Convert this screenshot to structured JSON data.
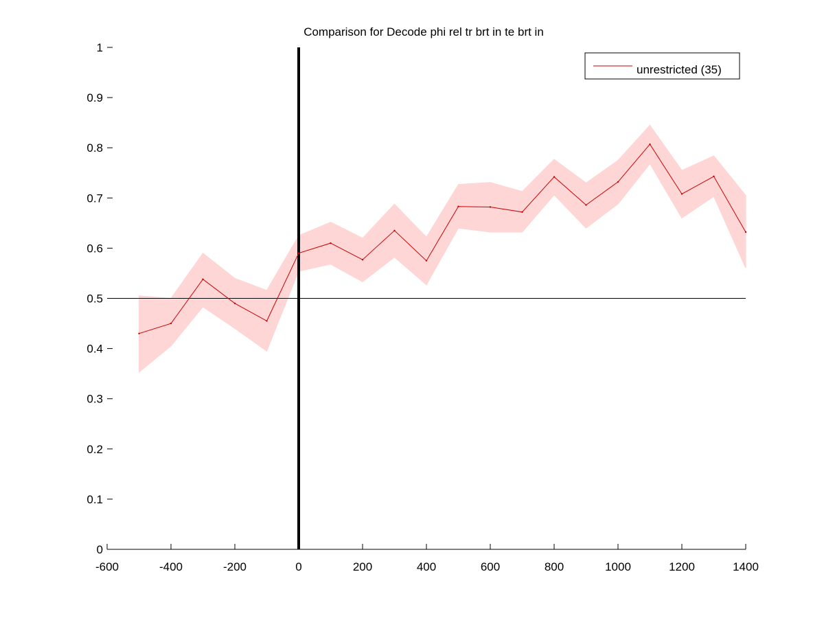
{
  "chart_data": {
    "type": "line",
    "title": "Comparison for Decode phi rel tr brt in te brt in",
    "xlabel": "",
    "ylabel": "",
    "xlim": [
      -600,
      1400
    ],
    "ylim": [
      0,
      1
    ],
    "xticks": [
      -600,
      -400,
      -200,
      0,
      200,
      400,
      600,
      800,
      1000,
      1200,
      1400
    ],
    "xtick_labels": [
      "-600",
      "-400",
      "-200",
      "0",
      "200",
      "400",
      "600",
      "800",
      "1000",
      "1200",
      "1400"
    ],
    "yticks": [
      0,
      0.1,
      0.2,
      0.3,
      0.4,
      0.5,
      0.6,
      0.7,
      0.8,
      0.9,
      1
    ],
    "ytick_labels": [
      "0",
      "0.1",
      "0.2",
      "0.3",
      "0.4",
      "0.5",
      "0.6",
      "0.7",
      "0.8",
      "0.9",
      "1"
    ],
    "grid": false,
    "legend_position": "top-right",
    "reference_lines": {
      "horizontal_y": 0.5,
      "vertical_x": 0
    },
    "series": [
      {
        "name": "unrestricted (35)",
        "color": "#cc0000",
        "band_color": "#ffd6d6",
        "x": [
          -500,
          -400,
          -300,
          -200,
          -100,
          0,
          100,
          200,
          300,
          400,
          500,
          600,
          700,
          800,
          900,
          1000,
          1100,
          1200,
          1300,
          1400
        ],
        "values": [
          0.43,
          0.45,
          0.538,
          0.49,
          0.455,
          0.59,
          0.61,
          0.577,
          0.635,
          0.575,
          0.683,
          0.682,
          0.672,
          0.742,
          0.686,
          0.732,
          0.807,
          0.708,
          0.743,
          0.632
        ],
        "upper": [
          0.505,
          0.5,
          0.59,
          0.54,
          0.516,
          0.625,
          0.652,
          0.62,
          0.688,
          0.622,
          0.727,
          0.731,
          0.713,
          0.777,
          0.73,
          0.775,
          0.845,
          0.755,
          0.784,
          0.705
        ],
        "lower": [
          0.353,
          0.405,
          0.483,
          0.44,
          0.395,
          0.554,
          0.568,
          0.533,
          0.582,
          0.527,
          0.64,
          0.632,
          0.632,
          0.706,
          0.64,
          0.688,
          0.768,
          0.66,
          0.703,
          0.56
        ]
      }
    ]
  }
}
